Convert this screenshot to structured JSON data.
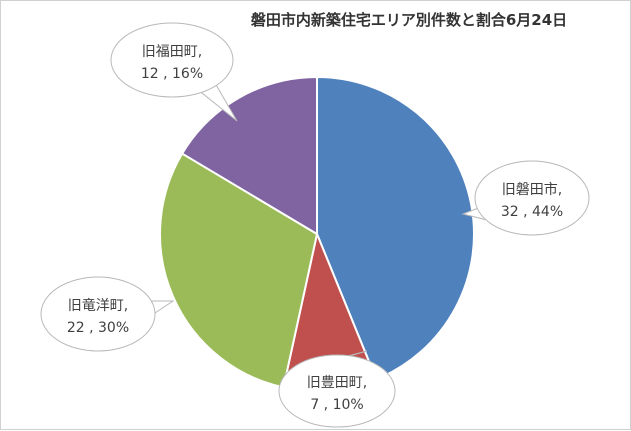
{
  "chart_data": {
    "type": "pie",
    "title": "磐田市内新築住宅エリア別件数と割合6月24日",
    "slices": [
      {
        "name": "旧磐田市",
        "value": 32,
        "percent": "44%",
        "color": "#4f81bd"
      },
      {
        "name": "旧豊田町",
        "value": 7,
        "percent": "10%",
        "color": "#c0504d"
      },
      {
        "name": "旧竜洋町",
        "value": 22,
        "percent": "30%",
        "color": "#9bbb59"
      },
      {
        "name": "旧福田町",
        "value": 12,
        "percent": "16%",
        "color": "#8064a2"
      }
    ],
    "labels": [
      {
        "line1": "旧磐田市,",
        "line2": "32 , 44%"
      },
      {
        "line1": "旧豊田町,",
        "line2": "7 , 10%"
      },
      {
        "line1": "旧竜洋町,",
        "line2": "22 , 30%"
      },
      {
        "line1": "旧福田町,",
        "line2": "12 , 16%"
      }
    ]
  }
}
